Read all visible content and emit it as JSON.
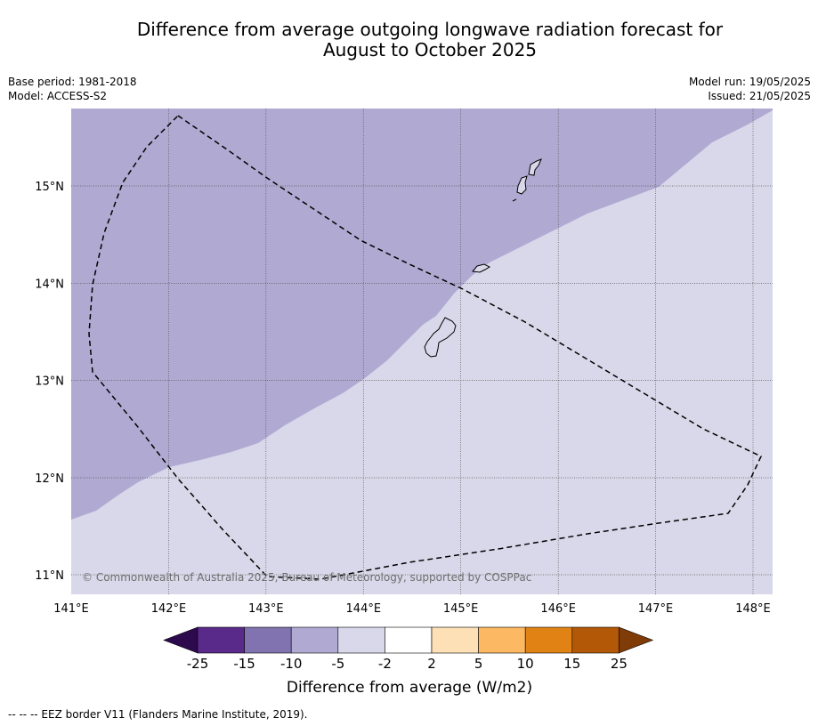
{
  "title_line1": "Difference from average outgoing longwave radiation forecast for",
  "title_line2": "August to October 2025",
  "base_period": "Base period: 1981-2018",
  "model": "Model: ACCESS-S2",
  "model_run": "Model run: 19/05/2025",
  "issued": "Issued: 21/05/2025",
  "copyright": "© Commonwealth of Australia 2025, Bureau of Meteorology, supported by COSPPac",
  "footnote": "--  --  -- EEZ border V11 (Flanders Marine Institute, 2019).",
  "lon_labels": [
    "141°E",
    "142°E",
    "143°E",
    "144°E",
    "145°E",
    "146°E",
    "147°E",
    "148°E"
  ],
  "lat_labels": [
    "15°N",
    "14°N",
    "13°N",
    "12°N",
    "11°N"
  ],
  "colorbar": {
    "label": "Difference from average (W/m2)",
    "ticks": [
      "-25",
      "-15",
      "-10",
      "-5",
      "-2",
      "2",
      "5",
      "10",
      "15",
      "25"
    ],
    "colors": {
      "below_min": "#2d0a4e",
      "bins": [
        "#5a2a8a",
        "#8073b0",
        "#b0a9d2",
        "#d8d8ea",
        "#ffffff",
        "#fde0b6",
        "#fcb863",
        "#e08214",
        "#b35806"
      ],
      "above_max": "#7f3b08"
    }
  },
  "map_fill": {
    "dark_region": "#b0a9d2",
    "light_region": "#d8d8ea"
  }
}
